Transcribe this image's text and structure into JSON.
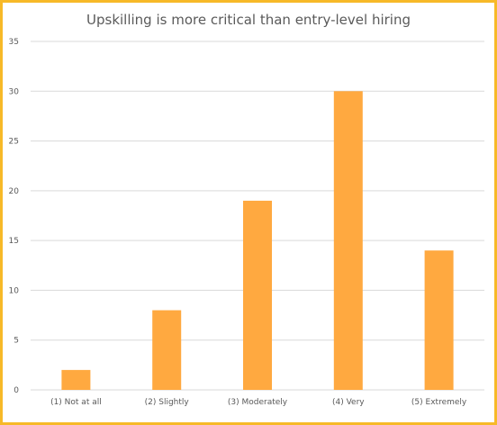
{
  "chart_data": {
    "type": "bar",
    "title": "Upskilling is more critical than entry-level hiring",
    "categories": [
      "(1) Not at all",
      "(2) Slightly",
      "(3) Moderately",
      "(4) Very",
      "(5) Extremely"
    ],
    "values": [
      2,
      8,
      19,
      30,
      14
    ],
    "ylim": [
      0,
      35
    ],
    "yticks": [
      0,
      5,
      10,
      15,
      20,
      25,
      30,
      35
    ],
    "grid": true,
    "bar_color": "#FFA940",
    "grid_color": "#d9d9d9",
    "border_color": "#F7B928"
  }
}
